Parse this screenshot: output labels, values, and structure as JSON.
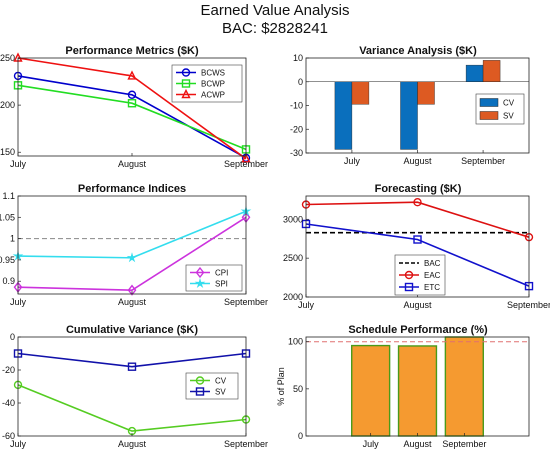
{
  "figure": {
    "title": "Earned Value Analysis",
    "subtitle": "BAC: $2828241"
  },
  "chart_data": [
    {
      "id": "performance-metrics",
      "type": "line",
      "title": "Performance Metrics ($K)",
      "categories": [
        "July",
        "August",
        "September"
      ],
      "series": [
        {
          "name": "BCWS",
          "values": [
            231,
            211,
            144
          ],
          "color": "#0000cc",
          "marker": "circle"
        },
        {
          "name": "BCWP",
          "values": [
            221,
            202,
            153
          ],
          "color": "#22dd22",
          "marker": "square"
        },
        {
          "name": "ACWP",
          "values": [
            250,
            231,
            143
          ],
          "color": "#ee1111",
          "marker": "triangle"
        }
      ],
      "ylim": [
        146,
        250
      ],
      "yticks": [
        150,
        200,
        250
      ],
      "legend": "top-right",
      "grid": false
    },
    {
      "id": "variance-analysis",
      "type": "bar",
      "title": "Variance Analysis ($K)",
      "categories": [
        "July",
        "August",
        "September"
      ],
      "series": [
        {
          "name": "CV",
          "values": [
            -28.5,
            -28.5,
            7
          ],
          "color": "#0a6fbd"
        },
        {
          "name": "SV",
          "values": [
            -9.5,
            -9.5,
            9
          ],
          "color": "#dd5a22"
        }
      ],
      "ylim": [
        -30,
        10
      ],
      "yticks": [
        -30,
        -20,
        -10,
        0,
        10
      ],
      "legend": "right",
      "grid": false
    },
    {
      "id": "performance-indices",
      "type": "line",
      "title": "Performance Indices",
      "categories": [
        "July",
        "August",
        "September"
      ],
      "series": [
        {
          "name": "CPI",
          "values": [
            0.886,
            0.879,
            1.05
          ],
          "color": "#cc33dd",
          "marker": "diamond"
        },
        {
          "name": "SPI",
          "values": [
            0.959,
            0.955,
            1.064
          ],
          "color": "#33ddee",
          "marker": "star"
        }
      ],
      "reference_line": 1,
      "ylim": [
        0.87,
        1.1
      ],
      "yticks": [
        0.9,
        0.95,
        1,
        1.05,
        1.1
      ],
      "legend": "bottom-right",
      "grid": false
    },
    {
      "id": "forecasting",
      "type": "line",
      "title": "Forecasting ($K)",
      "categories": [
        "July",
        "August",
        "September"
      ],
      "series": [
        {
          "name": "BAC",
          "values": [
            2828,
            2828,
            2828
          ],
          "color": "#000000",
          "style": "dashed"
        },
        {
          "name": "EAC",
          "values": [
            3190,
            3220,
            2770
          ],
          "color": "#dd1111",
          "marker": "circle"
        },
        {
          "name": "ETC",
          "values": [
            2940,
            2740,
            2140
          ],
          "color": "#1111cc",
          "marker": "square"
        }
      ],
      "ylim": [
        2000,
        3300
      ],
      "yticks": [
        2000,
        2500,
        3000
      ],
      "legend": "bottom-center",
      "grid": false
    },
    {
      "id": "cumulative-variance",
      "type": "line",
      "title": "Cumulative Variance ($K)",
      "categories": [
        "July",
        "August",
        "September"
      ],
      "series": [
        {
          "name": "CV",
          "values": [
            -29,
            -57,
            -50
          ],
          "color": "#55cc22",
          "marker": "circle"
        },
        {
          "name": "SV",
          "values": [
            -10,
            -18,
            -10
          ],
          "color": "#1111aa",
          "marker": "square"
        }
      ],
      "ylim": [
        -60,
        0
      ],
      "yticks": [
        -60,
        -40,
        -20,
        0
      ],
      "legend": "right",
      "grid": false
    },
    {
      "id": "schedule-performance",
      "type": "bar",
      "title": "Schedule Performance (%)",
      "ylabel": "% of Plan",
      "categories": [
        "July",
        "August",
        "September"
      ],
      "values": [
        95.9,
        95.5,
        106.4
      ],
      "color": "#f59a30",
      "edge_color": "#4a9a1a",
      "reference_line": 100,
      "ylim": [
        0,
        105
      ],
      "yticks": [
        0,
        50,
        100
      ],
      "grid": false
    }
  ]
}
